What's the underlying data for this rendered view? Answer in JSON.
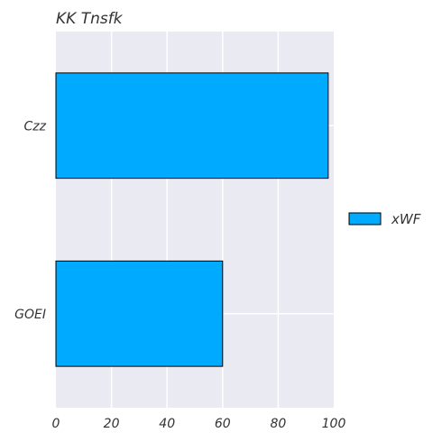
{
  "chart_data": {
    "type": "bar",
    "orientation": "horizontal",
    "title": "KK Tnsfk",
    "categories": [
      "Czz",
      "GOEI"
    ],
    "series": [
      {
        "name": "xWF",
        "values": [
          98,
          60
        ],
        "color": "#00aaff"
      }
    ],
    "xlim": [
      0,
      100
    ],
    "xticks": [
      0,
      20,
      40,
      60,
      80,
      100
    ],
    "xlabel": "",
    "ylabel": "",
    "grid": true,
    "legend": "right",
    "colors": {
      "plot_bg": "#eaeaf2",
      "grid": "#ffffff",
      "bar_edge": "#000000"
    }
  }
}
